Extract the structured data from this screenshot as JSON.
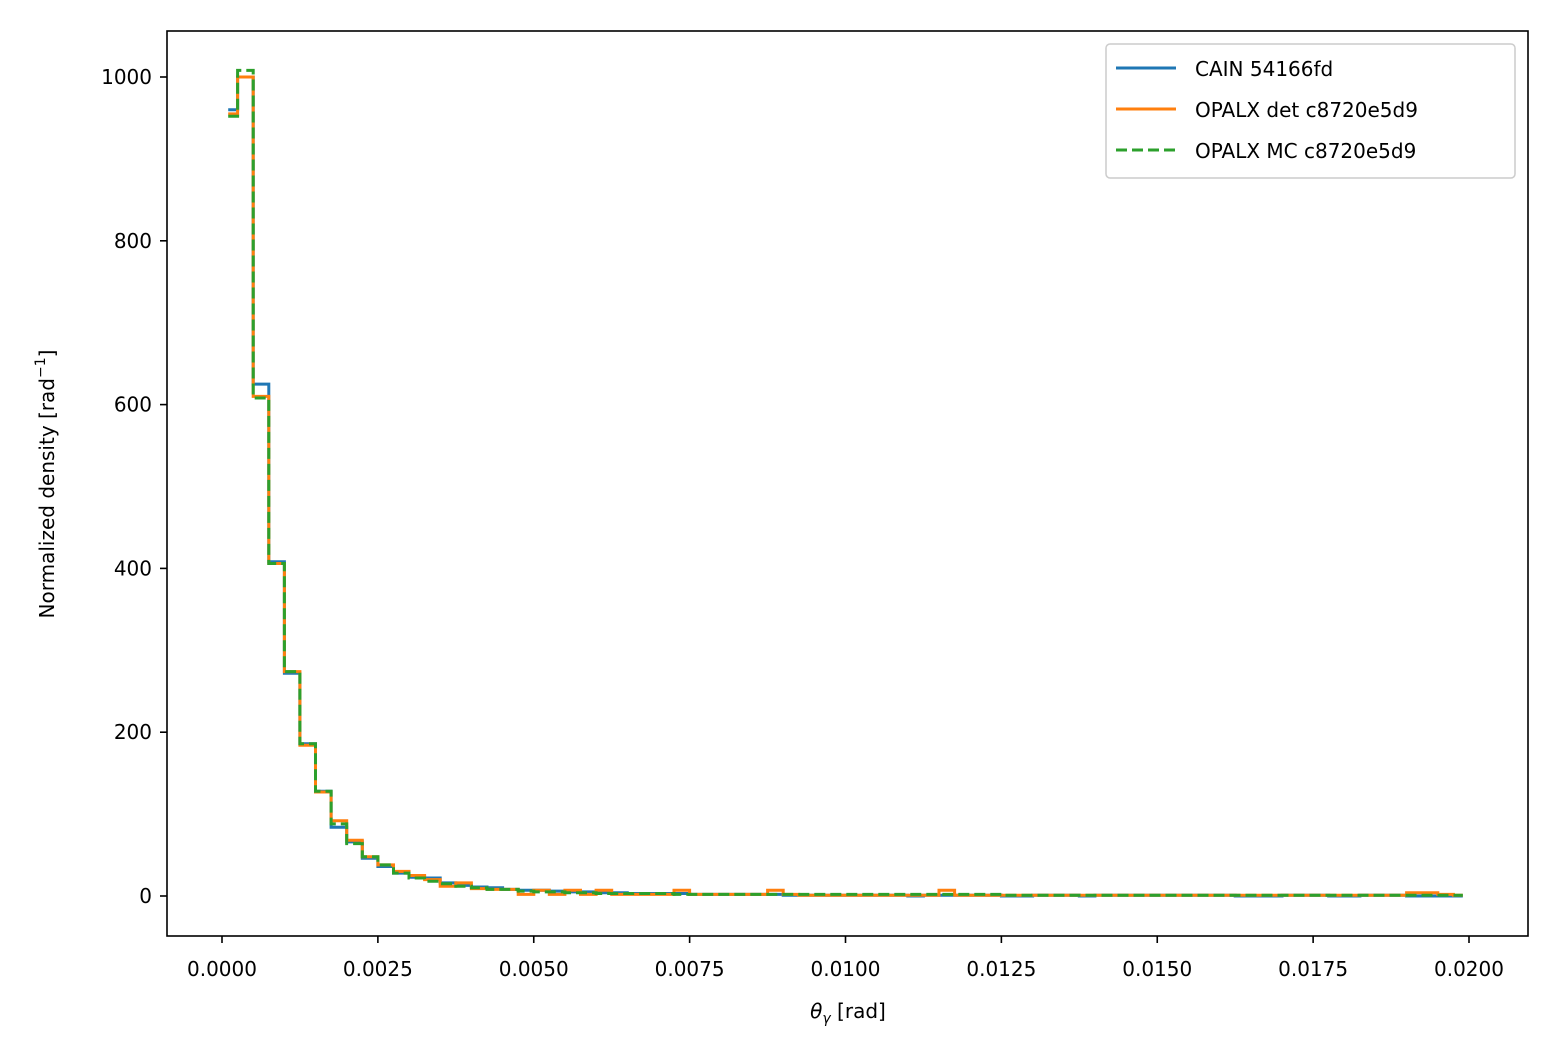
{
  "chart_data": {
    "type": "line",
    "subtype": "step-histogram",
    "title": "",
    "xlabel": "θγ [rad]",
    "ylabel": "Normalized density [rad⁻¹]",
    "xlim": [
      -0.001,
      0.0209
    ],
    "ylim": [
      -50,
      1055
    ],
    "grid": false,
    "legend_position": "upper right",
    "xticks": [
      0.0,
      0.0025,
      0.005,
      0.0075,
      0.01,
      0.0125,
      0.015,
      0.0175,
      0.02
    ],
    "xtick_labels": [
      "0.0000",
      "0.0025",
      "0.0050",
      "0.0075",
      "0.0100",
      "0.0125",
      "0.0150",
      "0.0175",
      "0.0200"
    ],
    "yticks": [
      0,
      200,
      400,
      600,
      800,
      1000
    ],
    "ytick_labels": [
      "0",
      "200",
      "400",
      "600",
      "800",
      "1000"
    ],
    "bin_width": 0.00025,
    "x_start": 0.0,
    "x_first_drawn": 0.0001,
    "x_end": 0.0199,
    "series": [
      {
        "name": "CAIN 54166fd",
        "color": "#1f77b4",
        "linestyle": "solid",
        "values": [
          960,
          1000,
          625,
          408,
          272,
          186,
          128,
          84,
          66,
          46,
          36,
          28,
          23,
          22,
          16,
          13,
          11,
          10,
          8,
          7,
          7,
          6,
          5,
          5,
          4,
          4,
          3,
          3,
          3,
          3,
          2,
          2,
          2,
          2,
          2,
          2,
          1,
          1,
          1,
          1,
          1,
          1,
          1,
          1,
          0,
          1,
          1,
          1,
          1,
          1,
          0,
          0,
          1,
          1,
          1,
          0,
          1,
          1,
          1,
          1,
          1,
          1,
          1,
          1,
          1,
          0,
          0,
          0,
          1,
          1,
          1,
          0,
          0,
          1,
          1,
          1,
          0,
          0,
          0,
          0
        ]
      },
      {
        "name": "OPALX det c8720e5d9",
        "color": "#ff7f0e",
        "linestyle": "solid",
        "values": [
          955,
          1000,
          610,
          406,
          274,
          184,
          127,
          92,
          68,
          48,
          38,
          30,
          25,
          20,
          12,
          16,
          9,
          8,
          8,
          2,
          7,
          2,
          7,
          2,
          7,
          2,
          2,
          2,
          2,
          7,
          2,
          2,
          2,
          2,
          2,
          7,
          2,
          1,
          1,
          1,
          1,
          1,
          1,
          1,
          1,
          1,
          7,
          1,
          1,
          1,
          1,
          1,
          1,
          1,
          1,
          1,
          1,
          1,
          1,
          1,
          1,
          1,
          1,
          1,
          1,
          1,
          1,
          1,
          1,
          1,
          1,
          1,
          1,
          1,
          1,
          1,
          4,
          4,
          2,
          1
        ]
      },
      {
        "name": "OPALX MC c8720e5d9",
        "color": "#2ca02c",
        "linestyle": "dashed",
        "values": [
          952,
          1008,
          608,
          406,
          274,
          186,
          128,
          88,
          64,
          48,
          38,
          28,
          22,
          18,
          15,
          12,
          10,
          8,
          8,
          6,
          5,
          5,
          4,
          4,
          3,
          3,
          3,
          3,
          3,
          2,
          2,
          2,
          2,
          2,
          2,
          2,
          2,
          2,
          2,
          2,
          2,
          2,
          2,
          2,
          2,
          2,
          2,
          2,
          2,
          2,
          1,
          1,
          1,
          1,
          1,
          1,
          1,
          1,
          1,
          1,
          1,
          1,
          1,
          1,
          1,
          1,
          1,
          1,
          1,
          1,
          1,
          1,
          1,
          1,
          1,
          1,
          1,
          1,
          1,
          1
        ]
      }
    ]
  },
  "legend": {
    "items": [
      {
        "label": "CAIN 54166fd",
        "color": "#1f77b4",
        "dash": "none"
      },
      {
        "label": "OPALX det c8720e5d9",
        "color": "#ff7f0e",
        "dash": "none"
      },
      {
        "label": "OPALX MC c8720e5d9",
        "color": "#2ca02c",
        "dash": "8,5"
      }
    ]
  },
  "axes": {
    "xlabel_main": "θ",
    "xlabel_sub": "γ",
    "xlabel_unit": " [rad]",
    "ylabel": "Normalized density [rad",
    "ylabel_sup": "−1",
    "ylabel_close": "]"
  }
}
